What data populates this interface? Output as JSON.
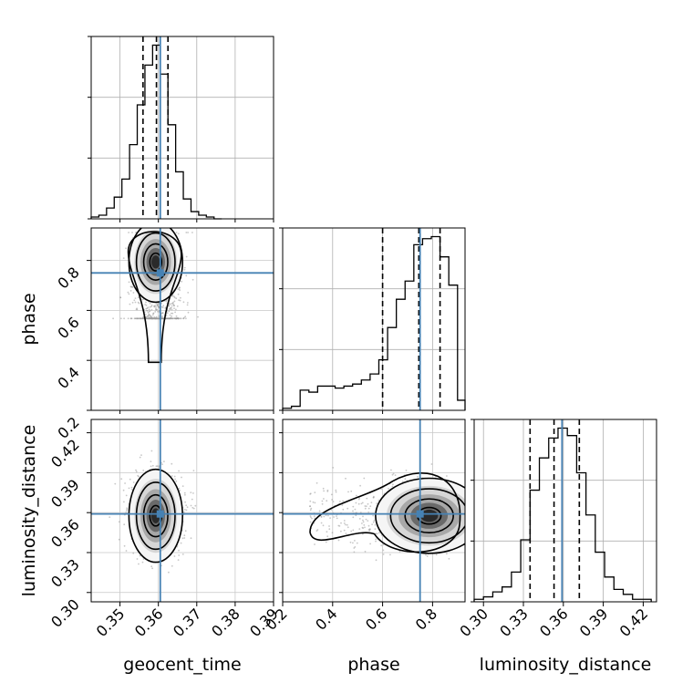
{
  "chart_data": {
    "type": "corner",
    "parameters": [
      "geocent_time",
      "phase",
      "luminosity_distance"
    ],
    "axis_labels": {
      "geocent_time": "geocent_time",
      "phase": "phase",
      "luminosity_distance": "luminosity_distance"
    },
    "ranges": {
      "geocent_time": [
        0.3425,
        0.39
      ],
      "phase": [
        0.2,
        0.93
      ],
      "luminosity_distance": [
        0.293,
        0.43
      ]
    },
    "ticks": {
      "geocent_time": [
        "0.35",
        "0.36",
        "0.37",
        "0.38",
        "0.39"
      ],
      "phase": [
        "0.2",
        "0.4",
        "0.6",
        "0.8"
      ],
      "luminosity_distance": [
        "0.30",
        "0.33",
        "0.36",
        "0.39",
        "0.42"
      ]
    },
    "truths": {
      "geocent_time": 0.3605,
      "phase": 0.75,
      "luminosity_distance": 0.359
    },
    "quantiles": {
      "geocent_time": [
        0.356,
        0.3595,
        0.3625
      ],
      "phase": [
        0.6,
        0.745,
        0.83
      ],
      "luminosity_distance": [
        0.335,
        0.353,
        0.372
      ]
    },
    "grid": true,
    "truth_color": "#4682b4",
    "histograms": {
      "geocent_time": {
        "edges": [
          0.3425,
          0.3445,
          0.3465,
          0.3485,
          0.3505,
          0.3525,
          0.3545,
          0.3565,
          0.3585,
          0.3605,
          0.3625,
          0.3645,
          0.3665,
          0.3685,
          0.3705,
          0.3725,
          0.3745,
          0.3765
        ],
        "counts": [
          1,
          2,
          6,
          12,
          22,
          41,
          63,
          85,
          96,
          80,
          52,
          26,
          11,
          4,
          2,
          1,
          0
        ]
      },
      "phase": {
        "edges": [
          0.2,
          0.235,
          0.27,
          0.305,
          0.34,
          0.375,
          0.41,
          0.445,
          0.48,
          0.515,
          0.55,
          0.585,
          0.62,
          0.655,
          0.69,
          0.725,
          0.76,
          0.795,
          0.83,
          0.865,
          0.9,
          0.93
        ],
        "counts": [
          1,
          2,
          10,
          9,
          12,
          12,
          11,
          12,
          13,
          15,
          18,
          25,
          41,
          55,
          64,
          82,
          85,
          86,
          76,
          62,
          5
        ]
      },
      "luminosity_distance": {
        "edges": [
          0.293,
          0.3,
          0.307,
          0.314,
          0.321,
          0.328,
          0.335,
          0.342,
          0.349,
          0.356,
          0.363,
          0.37,
          0.377,
          0.384,
          0.391,
          0.398,
          0.405,
          0.412,
          0.419,
          0.426
        ],
        "counts": [
          1,
          2,
          4,
          6,
          12,
          25,
          45,
          58,
          66,
          70,
          67,
          52,
          35,
          20,
          10,
          5,
          3,
          1,
          1
        ]
      }
    },
    "contour_levels": [
      "0.5",
      "1.0",
      "1.5",
      "2.0"
    ]
  }
}
